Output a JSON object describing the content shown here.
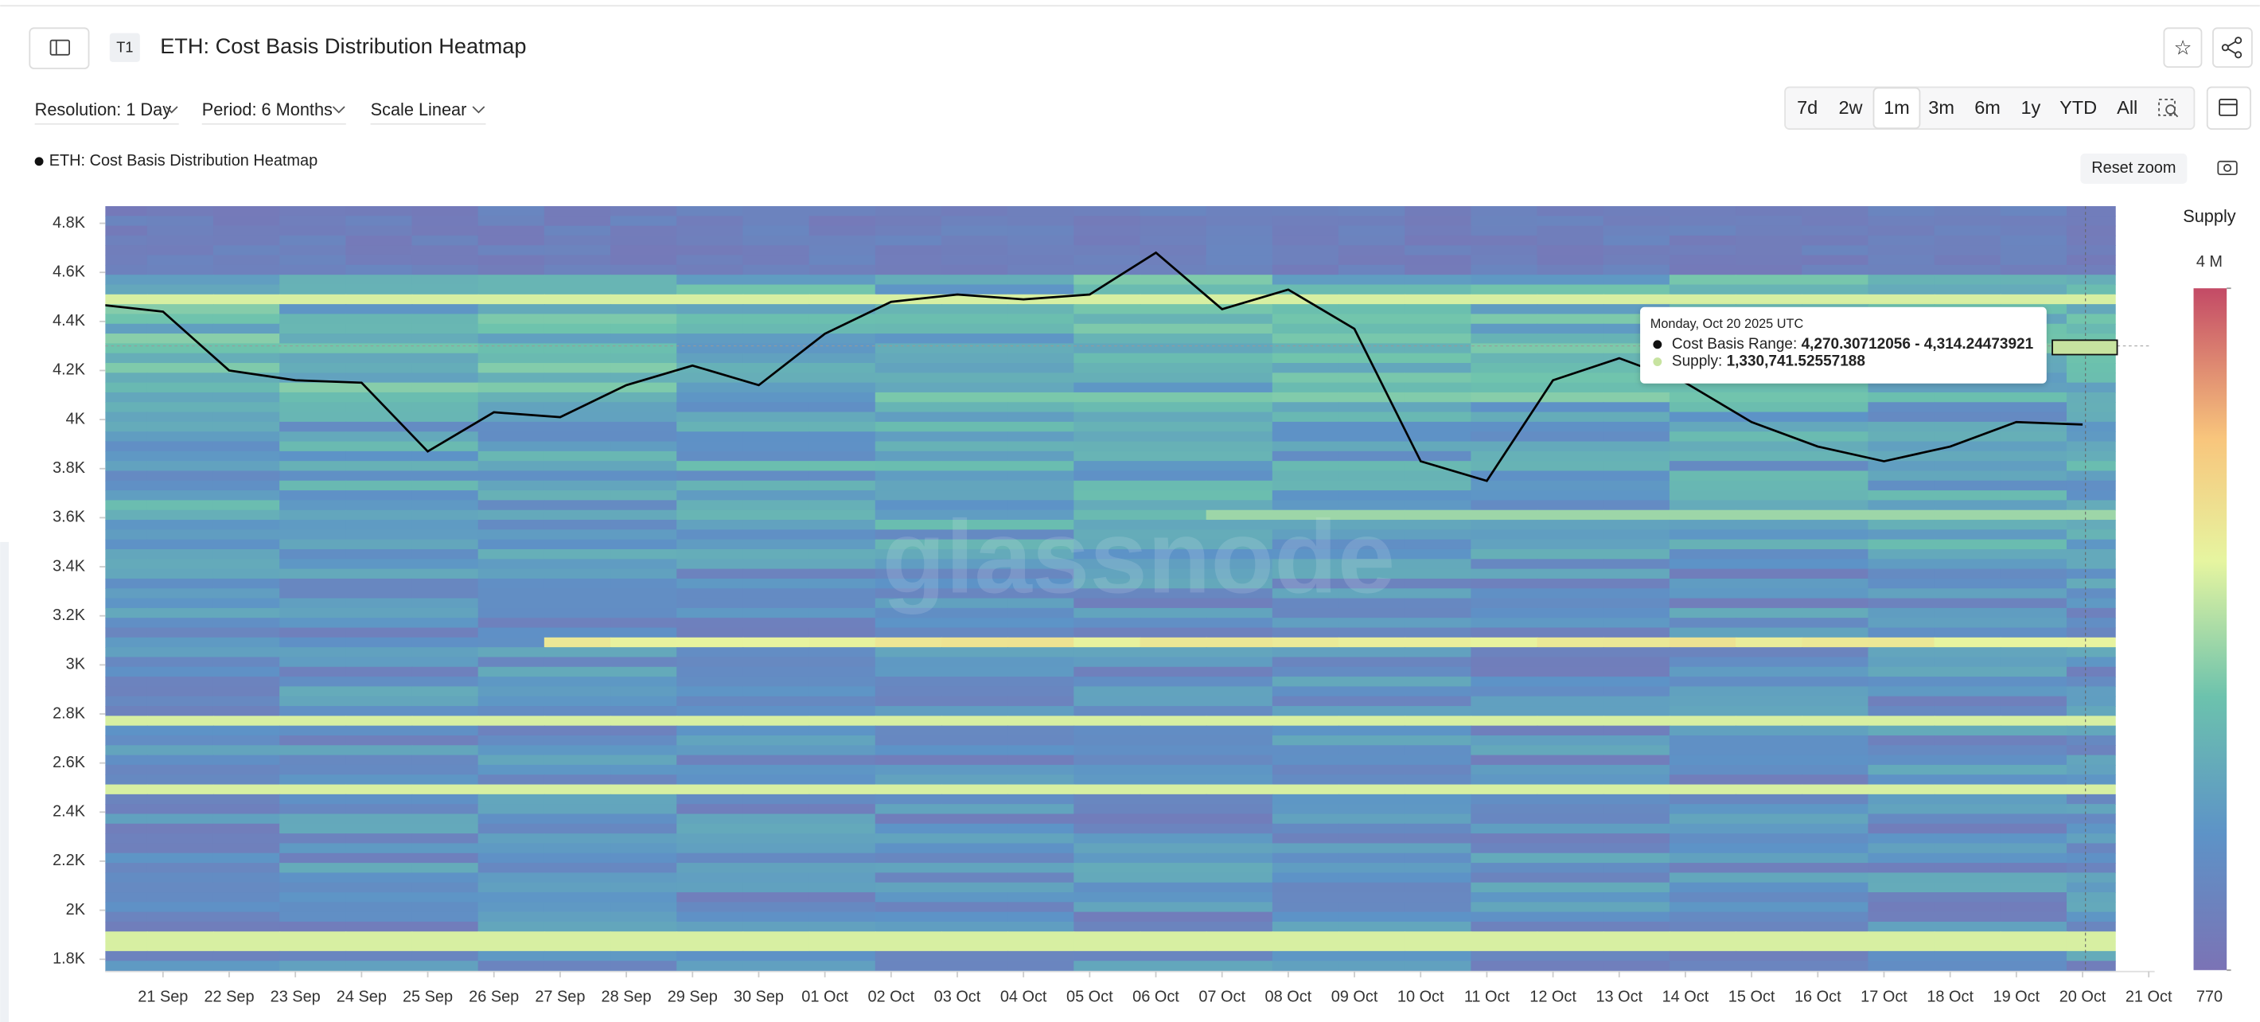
{
  "header": {
    "badge": "T1",
    "title": "ETH: Cost Basis Distribution Heatmap"
  },
  "toolbar": {
    "resolution": "Resolution: 1 Day",
    "period": "Period: 6 Months",
    "scale": "Scale Linear",
    "ranges": [
      "7d",
      "2w",
      "1m",
      "3m",
      "6m",
      "1y",
      "YTD",
      "All"
    ],
    "selected_range": "1m",
    "reset_zoom": "Reset zoom"
  },
  "chart_data": {
    "type": "line",
    "categories": [
      null,
      "21 Sep",
      "22 Sep",
      "23 Sep",
      "24 Sep",
      "25 Sep",
      "26 Sep",
      "27 Sep",
      "28 Sep",
      "29 Sep",
      "30 Sep",
      "01 Oct",
      "02 Oct",
      "03 Oct",
      "04 Oct",
      "05 Oct",
      "06 Oct",
      "07 Oct",
      "08 Oct",
      "09 Oct",
      "10 Oct",
      "11 Oct",
      "12 Oct",
      "13 Oct",
      "14 Oct",
      "15 Oct",
      "16 Oct",
      "17 Oct",
      "18 Oct",
      "19 Oct",
      "20 Oct",
      "21 Oct"
    ],
    "series": [
      {
        "name": "ETH: Cost Basis Distribution Heatmap",
        "color": "#000000",
        "values": [
          4470,
          4440,
          4200,
          4160,
          4150,
          3870,
          4030,
          4010,
          4140,
          4220,
          4140,
          4350,
          4480,
          4510,
          4490,
          4510,
          4680,
          4450,
          4530,
          4370,
          3830,
          3750,
          4160,
          4250,
          4150,
          3990,
          3890,
          3830,
          3890,
          3990,
          3980,
          null
        ]
      }
    ],
    "ylim": [
      1750,
      4870
    ],
    "yticks": [
      {
        "value": 1800,
        "label": "1.8K"
      },
      {
        "value": 2000,
        "label": "2K"
      },
      {
        "value": 2200,
        "label": "2.2K"
      },
      {
        "value": 2400,
        "label": "2.4K"
      },
      {
        "value": 2600,
        "label": "2.6K"
      },
      {
        "value": 2800,
        "label": "2.8K"
      },
      {
        "value": 3000,
        "label": "3K"
      },
      {
        "value": 3200,
        "label": "3.2K"
      },
      {
        "value": 3400,
        "label": "3.4K"
      },
      {
        "value": 3600,
        "label": "3.6K"
      },
      {
        "value": 3800,
        "label": "3.8K"
      },
      {
        "value": 4000,
        "label": "4K"
      },
      {
        "value": 4200,
        "label": "4.2K"
      },
      {
        "value": 4400,
        "label": "4.4K"
      },
      {
        "value": 4600,
        "label": "4.6K"
      },
      {
        "value": 4800,
        "label": "4.8K"
      }
    ],
    "colorbar": {
      "label": "Supply",
      "ticks": [
        {
          "value": 4000000,
          "label": "4 M"
        },
        770
      ]
    },
    "watermark": "glassnode",
    "tooltip": {
      "date": "Monday, Oct 20 2025 UTC",
      "range_label": "Cost Basis Range: ",
      "range": "4,270.30712056 - 4,314.24473921",
      "supply_label": "Supply: ",
      "supply": "1,330,741.52557188"
    }
  }
}
